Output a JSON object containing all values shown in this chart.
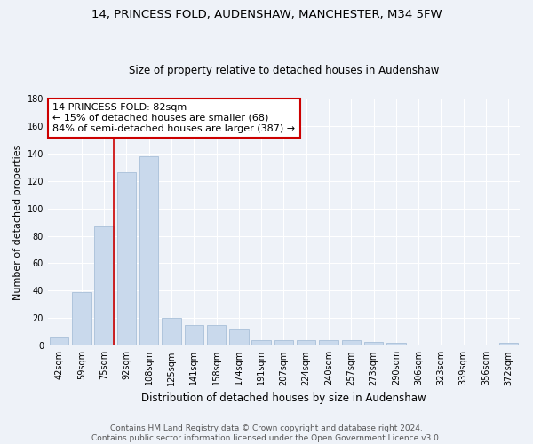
{
  "title": "14, PRINCESS FOLD, AUDENSHAW, MANCHESTER, M34 5FW",
  "subtitle": "Size of property relative to detached houses in Audenshaw",
  "xlabel": "Distribution of detached houses by size in Audenshaw",
  "ylabel": "Number of detached properties",
  "bar_color": "#c9d9ec",
  "bar_edge_color": "#a8bfd8",
  "background_color": "#eef2f8",
  "grid_color": "#ffffff",
  "categories": [
    "42sqm",
    "59sqm",
    "75sqm",
    "92sqm",
    "108sqm",
    "125sqm",
    "141sqm",
    "158sqm",
    "174sqm",
    "191sqm",
    "207sqm",
    "224sqm",
    "240sqm",
    "257sqm",
    "273sqm",
    "290sqm",
    "306sqm",
    "323sqm",
    "339sqm",
    "356sqm",
    "372sqm"
  ],
  "values": [
    6,
    39,
    87,
    126,
    138,
    20,
    15,
    15,
    12,
    4,
    4,
    4,
    4,
    4,
    3,
    2,
    0,
    0,
    0,
    0,
    2
  ],
  "ylim": [
    0,
    180
  ],
  "yticks": [
    0,
    20,
    40,
    60,
    80,
    100,
    120,
    140,
    160,
    180
  ],
  "vline_color": "#cc0000",
  "vline_index": 2.41,
  "annotation_text": "14 PRINCESS FOLD: 82sqm\n← 15% of detached houses are smaller (68)\n84% of semi-detached houses are larger (387) →",
  "annotation_box_color": "#ffffff",
  "annotation_box_edge": "#cc0000",
  "footer_line1": "Contains HM Land Registry data © Crown copyright and database right 2024.",
  "footer_line2": "Contains public sector information licensed under the Open Government Licence v3.0.",
  "title_fontsize": 9.5,
  "subtitle_fontsize": 8.5,
  "xlabel_fontsize": 8.5,
  "ylabel_fontsize": 8,
  "tick_fontsize": 7,
  "annotation_fontsize": 8,
  "footer_fontsize": 6.5
}
